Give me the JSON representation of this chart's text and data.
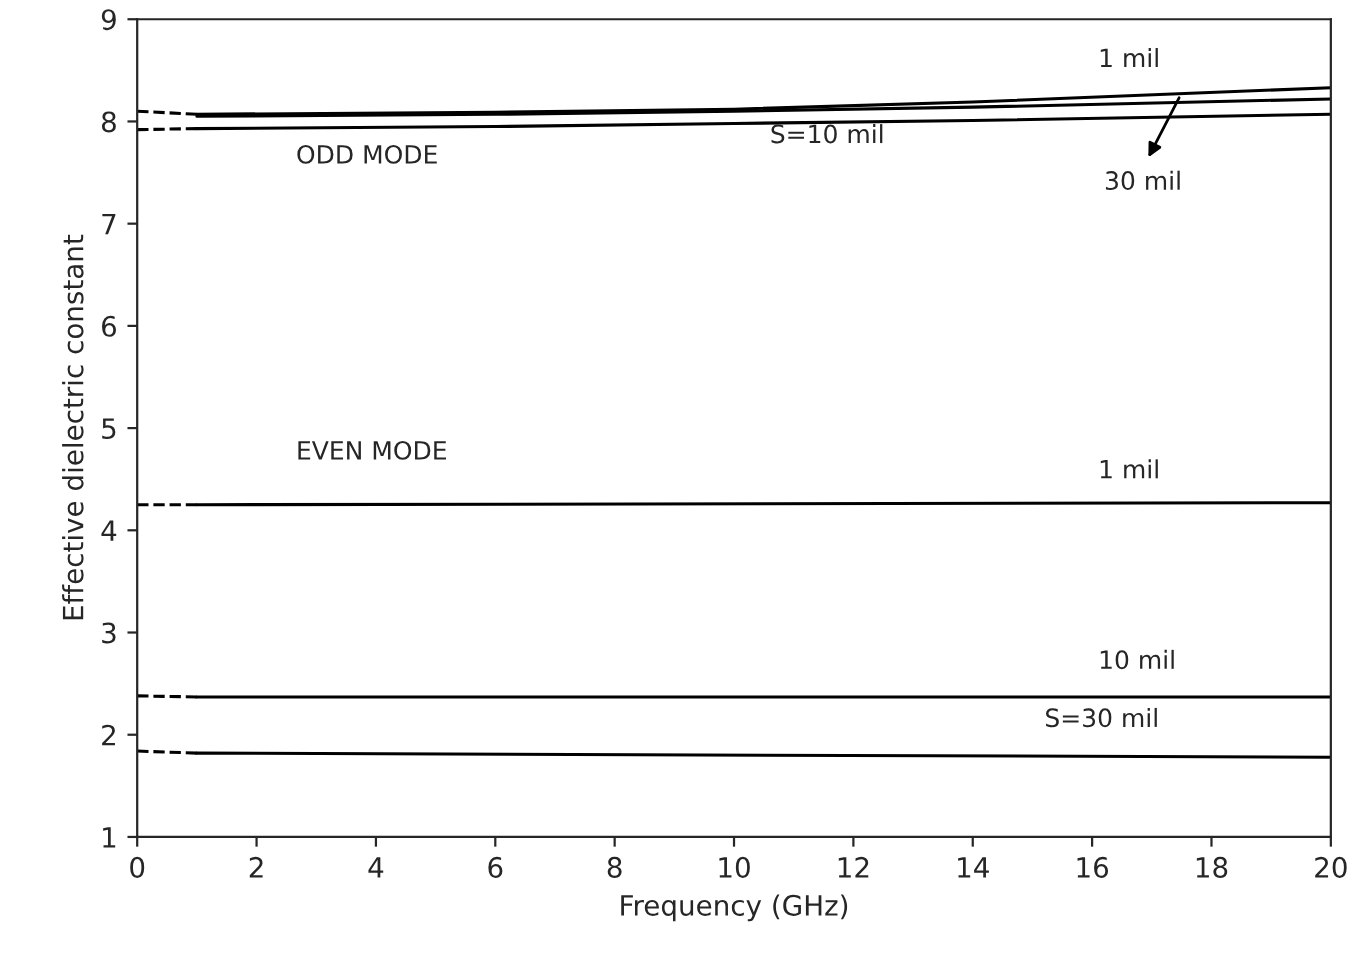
{
  "chart_data": {
    "type": "line",
    "xlabel": "Frequency (GHz)",
    "ylabel": "Effective dielectric constant",
    "xlim": [
      0,
      20
    ],
    "ylim": [
      1,
      9
    ],
    "xticks": [
      0,
      2,
      4,
      6,
      8,
      10,
      12,
      14,
      16,
      18,
      20
    ],
    "yticks": [
      1,
      2,
      3,
      4,
      5,
      6,
      7,
      8,
      9
    ],
    "grid": false,
    "legend": false,
    "marker": "none",
    "series": [
      {
        "color": "#000000",
        "line_style": "solid",
        "x": [
          1,
          6,
          10,
          14,
          20
        ],
        "values": [
          8.07,
          8.09,
          8.12,
          8.19,
          8.33
        ]
      },
      {
        "color": "#000000",
        "line_style": "solid",
        "x": [
          1,
          6,
          10,
          14,
          20
        ],
        "values": [
          8.05,
          8.07,
          8.1,
          8.14,
          8.22
        ]
      },
      {
        "color": "#000000",
        "line_style": "solid",
        "x": [
          1,
          6,
          10,
          14,
          20
        ],
        "values": [
          7.93,
          7.95,
          7.98,
          8.01,
          8.07
        ]
      },
      {
        "color": "#000000",
        "line_style": "solid",
        "x": [
          1,
          20
        ],
        "values": [
          4.25,
          4.27
        ]
      },
      {
        "color": "#000000",
        "line_style": "solid",
        "x": [
          1,
          20
        ],
        "values": [
          2.37,
          2.37
        ]
      },
      {
        "color": "#000000",
        "line_style": "solid",
        "x": [
          1,
          20
        ],
        "values": [
          1.82,
          1.78
        ]
      },
      {
        "color": "#000000",
        "line_style": "dashed",
        "x": [
          0,
          1
        ],
        "values": [
          8.1,
          8.07
        ]
      },
      {
        "color": "#000000",
        "line_style": "dashed",
        "x": [
          0,
          1
        ],
        "values": [
          7.92,
          7.93
        ]
      },
      {
        "color": "#000000",
        "line_style": "dashed",
        "x": [
          0,
          1
        ],
        "values": [
          4.25,
          4.25
        ]
      },
      {
        "color": "#000000",
        "line_style": "dashed",
        "x": [
          0,
          1
        ],
        "values": [
          2.38,
          2.37
        ]
      },
      {
        "color": "#000000",
        "line_style": "dashed",
        "x": [
          0,
          1
        ],
        "values": [
          1.84,
          1.82
        ]
      }
    ],
    "annotations": [
      "1 mil",
      "S=10 mil",
      "30 mil",
      "ODD MODE",
      "EVEN MODE",
      "1 mil",
      "10 mil",
      "S=30 mil"
    ]
  }
}
